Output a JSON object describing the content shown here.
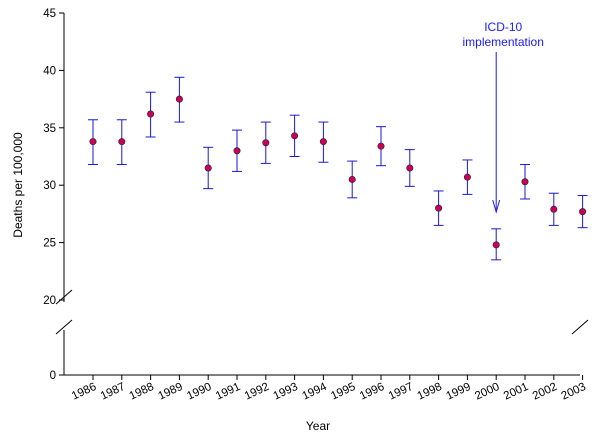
{
  "chart_data": {
    "type": "scatter",
    "xlabel": "Year",
    "ylabel": "Deaths per 100,000",
    "ylim": [
      0,
      45
    ],
    "axis_break": [
      5,
      20
    ],
    "yticks": [
      0,
      20,
      25,
      30,
      35,
      40,
      45
    ],
    "grid": false,
    "colors": {
      "marker": "#cc0044",
      "error_bar": "#1a1acc",
      "annotation": "#1a1aff",
      "axis": "#000000"
    },
    "points": [
      {
        "x": "1986",
        "y": 33.8,
        "lower": 31.8,
        "upper": 35.7
      },
      {
        "x": "1987",
        "y": 33.8,
        "lower": 31.8,
        "upper": 35.7
      },
      {
        "x": "1988",
        "y": 36.2,
        "lower": 34.2,
        "upper": 38.1
      },
      {
        "x": "1989",
        "y": 37.5,
        "lower": 35.5,
        "upper": 39.4
      },
      {
        "x": "1990",
        "y": 31.5,
        "lower": 29.7,
        "upper": 33.3
      },
      {
        "x": "1991",
        "y": 33.0,
        "lower": 31.2,
        "upper": 34.8
      },
      {
        "x": "1992",
        "y": 33.7,
        "lower": 31.9,
        "upper": 35.5
      },
      {
        "x": "1993",
        "y": 34.3,
        "lower": 32.5,
        "upper": 36.1
      },
      {
        "x": "1994",
        "y": 33.8,
        "lower": 32.0,
        "upper": 35.5
      },
      {
        "x": "1995",
        "y": 30.5,
        "lower": 28.9,
        "upper": 32.1
      },
      {
        "x": "1996",
        "y": 33.4,
        "lower": 31.7,
        "upper": 35.1
      },
      {
        "x": "1997",
        "y": 31.5,
        "lower": 29.9,
        "upper": 33.1
      },
      {
        "x": "1998",
        "y": 28.0,
        "lower": 26.5,
        "upper": 29.5
      },
      {
        "x": "1999",
        "y": 30.7,
        "lower": 29.2,
        "upper": 32.2
      },
      {
        "x": "2000",
        "y": 24.8,
        "lower": 23.5,
        "upper": 26.2
      },
      {
        "x": "2001",
        "y": 30.3,
        "lower": 28.8,
        "upper": 31.8
      },
      {
        "x": "2002",
        "y": 27.9,
        "lower": 26.5,
        "upper": 29.3
      },
      {
        "x": "2003",
        "y": 27.7,
        "lower": 26.3,
        "upper": 29.1
      }
    ],
    "annotations": [
      {
        "text_lines": [
          "ICD-10",
          "implementation"
        ],
        "target_x": "2000"
      }
    ]
  }
}
